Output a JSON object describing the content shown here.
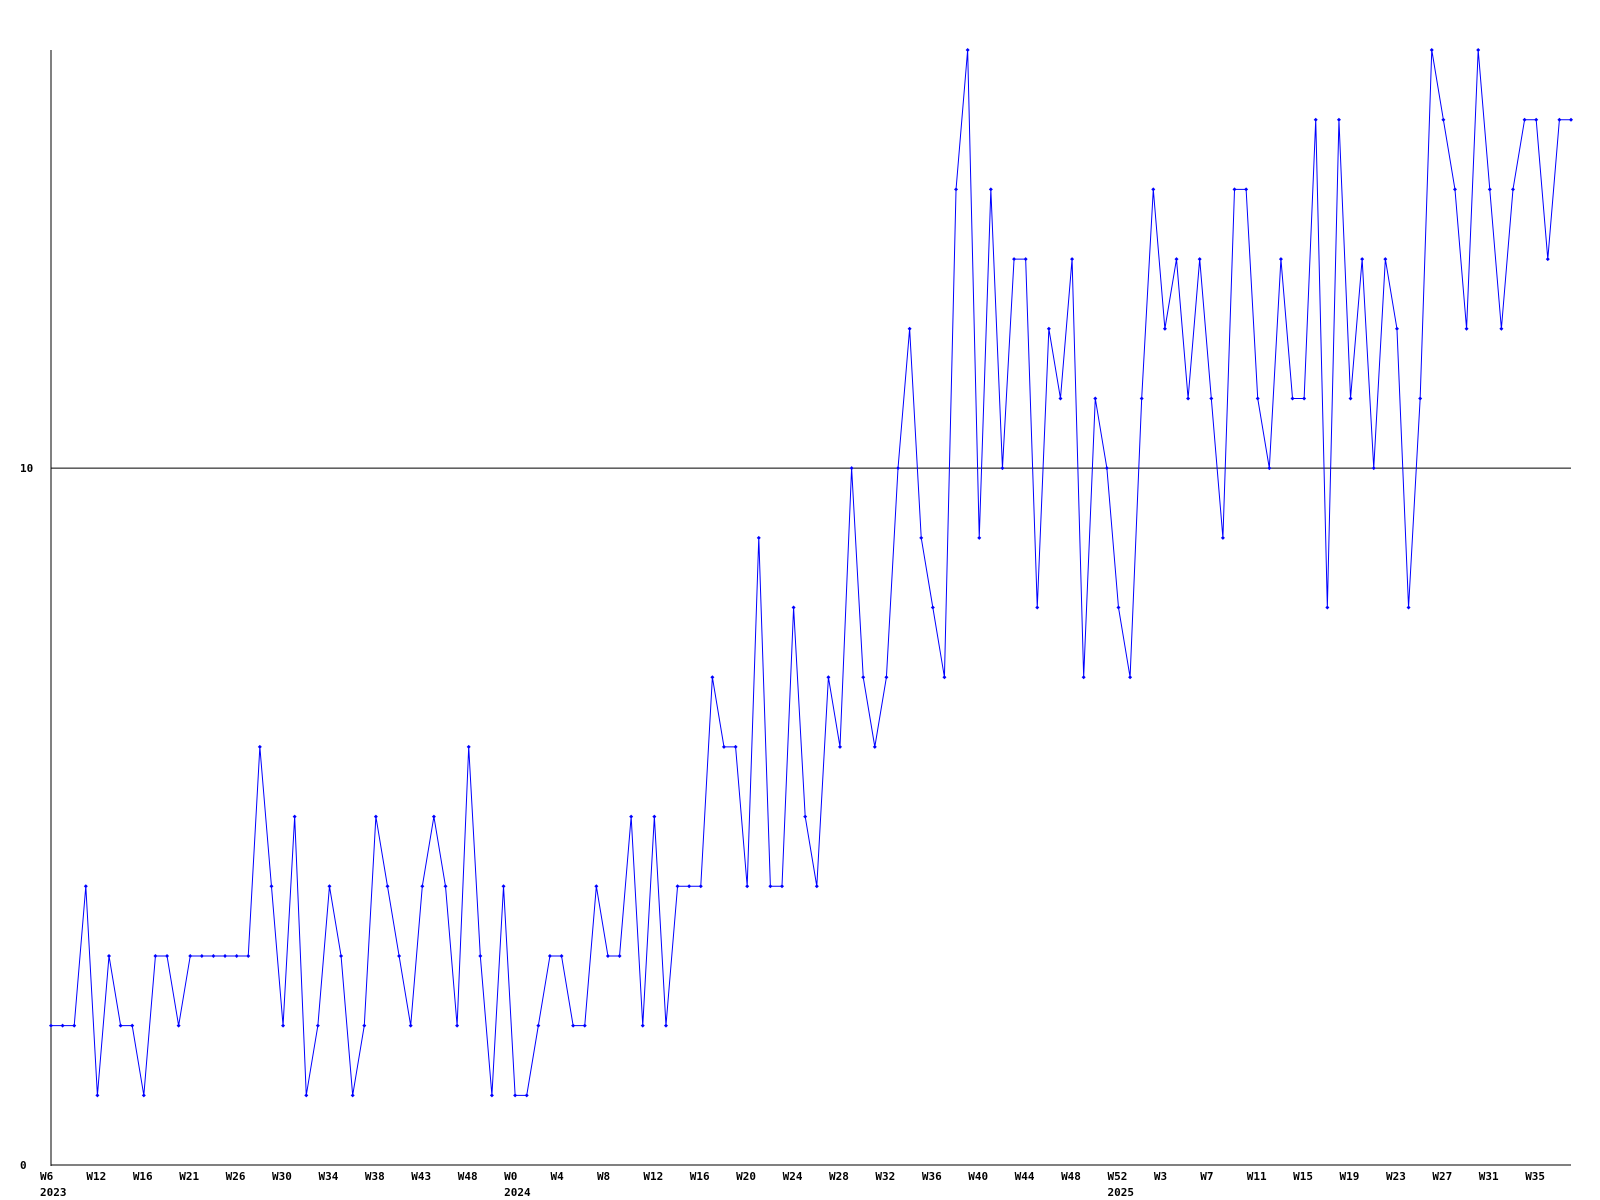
{
  "chart_data": {
    "type": "line",
    "color": "#0000ff",
    "grid": true,
    "ylim": [
      0,
      16
    ],
    "yticks": [
      0,
      10
    ],
    "categories": [
      "W6",
      null,
      null,
      null,
      "W12",
      null,
      null,
      null,
      "W16",
      null,
      null,
      null,
      "W21",
      null,
      null,
      null,
      "W26",
      null,
      null,
      null,
      "W30",
      null,
      null,
      null,
      "W34",
      null,
      null,
      null,
      "W38",
      null,
      null,
      null,
      "W43",
      null,
      null,
      null,
      "W48",
      null,
      null,
      null,
      "W0",
      null,
      null,
      null,
      "W4",
      null,
      null,
      null,
      "W8",
      null,
      null,
      null,
      "W12",
      null,
      null,
      null,
      "W16",
      null,
      null,
      null,
      "W20",
      null,
      null,
      null,
      "W24",
      null,
      null,
      null,
      "W28",
      null,
      null,
      null,
      "W32",
      null,
      null,
      null,
      "W36",
      null,
      null,
      null,
      "W40",
      null,
      null,
      null,
      "W44",
      null,
      null,
      null,
      "W48",
      null,
      null,
      null,
      "W52",
      null,
      null,
      null,
      "W3",
      null,
      null,
      null,
      "W7",
      null,
      null,
      null,
      "W11",
      null,
      null,
      null,
      "W15",
      null,
      null,
      null,
      "W19",
      null,
      null,
      null,
      "W23",
      null,
      null,
      null,
      "W27",
      null,
      null,
      null,
      "W31",
      null,
      null,
      null,
      "W35",
      null,
      null,
      null
    ],
    "category_years": [
      "2023",
      null,
      null,
      null,
      null,
      null,
      null,
      null,
      null,
      null,
      null,
      null,
      null,
      null,
      null,
      null,
      null,
      null,
      null,
      null,
      null,
      null,
      null,
      null,
      null,
      null,
      null,
      null,
      null,
      null,
      null,
      null,
      null,
      null,
      null,
      null,
      null,
      null,
      null,
      null,
      "2024",
      null,
      null,
      null,
      null,
      null,
      null,
      null,
      null,
      null,
      null,
      null,
      null,
      null,
      null,
      null,
      null,
      null,
      null,
      null,
      null,
      null,
      null,
      null,
      null,
      null,
      null,
      null,
      null,
      null,
      null,
      null,
      null,
      null,
      null,
      null,
      null,
      null,
      null,
      null,
      null,
      null,
      null,
      null,
      null,
      null,
      null,
      null,
      null,
      null,
      null,
      null,
      "2025",
      null,
      null,
      null,
      null,
      null,
      null,
      null,
      null,
      null,
      null,
      null,
      null,
      null,
      null,
      null,
      null,
      null,
      null,
      null,
      null,
      null,
      null,
      null,
      null,
      null,
      null,
      null,
      null,
      null,
      null,
      null,
      null,
      null,
      null,
      null,
      null,
      null,
      null,
      null
    ],
    "values": [
      2,
      2,
      2,
      4,
      1,
      3,
      2,
      2,
      1,
      3,
      3,
      2,
      3,
      3,
      3,
      3,
      3,
      3,
      6,
      4,
      2,
      5,
      1,
      2,
      4,
      3,
      1,
      2,
      5,
      4,
      3,
      2,
      4,
      5,
      4,
      2,
      6,
      3,
      1,
      4,
      1,
      1,
      2,
      3,
      3,
      2,
      2,
      4,
      3,
      3,
      5,
      2,
      5,
      2,
      4,
      4,
      4,
      7,
      6,
      6,
      4,
      9,
      4,
      4,
      8,
      5,
      4,
      7,
      6,
      10,
      7,
      6,
      7,
      10,
      12,
      9,
      8,
      7,
      14,
      16,
      9,
      14,
      10,
      13,
      13,
      8,
      12,
      11,
      13,
      7,
      11,
      10,
      8,
      7,
      11,
      14,
      12,
      13,
      11,
      13,
      11,
      9,
      14,
      14,
      11,
      10,
      13,
      11,
      11,
      15,
      8,
      15,
      11,
      13,
      10,
      13,
      12,
      8,
      11,
      16,
      15,
      14,
      12,
      16,
      14,
      12,
      14,
      15,
      15,
      13,
      15,
      15
    ]
  }
}
